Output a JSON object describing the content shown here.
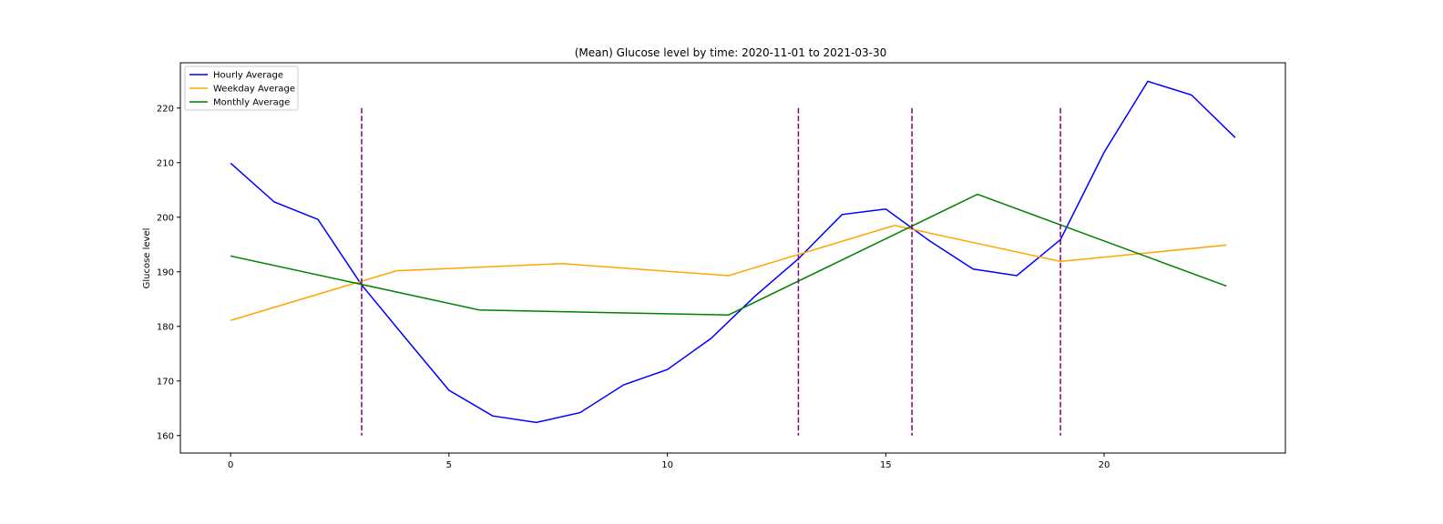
{
  "chart_data": {
    "type": "line",
    "title": "(Mean) Glucose level by time: 2020-11-01 to 2021-03-30",
    "xlabel": "",
    "ylabel": "Glucose level",
    "xlim": [
      -1.15,
      24.15
    ],
    "ylim": [
      156.8,
      228.3
    ],
    "xticks": [
      0,
      5,
      10,
      15,
      20
    ],
    "yticks": [
      160,
      170,
      180,
      190,
      200,
      210,
      220
    ],
    "grid": false,
    "legend_placement": "top-left",
    "series": [
      {
        "name": "Hourly Average",
        "color": "#0000ff",
        "x": [
          0,
          1,
          2,
          3,
          4,
          5,
          6,
          7,
          8,
          9,
          10,
          11,
          12,
          13,
          14,
          15,
          16,
          17,
          18,
          19,
          20,
          21,
          22,
          23
        ],
        "y": [
          209.9,
          202.8,
          199.6,
          187.6,
          177.9,
          168.3,
          163.6,
          162.4,
          164.2,
          169.3,
          172.1,
          177.8,
          185.5,
          192.4,
          200.5,
          201.5,
          195.7,
          190.5,
          189.3,
          195.9,
          211.9,
          224.9,
          222.4,
          214.6
        ]
      },
      {
        "name": "Weekday Average",
        "color": "#ffa500",
        "x": [
          0,
          3.8,
          7.6,
          11.4,
          15.2,
          19,
          22.8
        ],
        "y": [
          181.1,
          190.2,
          191.5,
          189.3,
          198.5,
          191.9,
          194.9
        ]
      },
      {
        "name": "Monthly Average",
        "color": "#008000",
        "x": [
          0,
          5.7,
          11.4,
          17.1,
          22.8
        ],
        "y": [
          192.9,
          183.0,
          182.1,
          204.2,
          187.4
        ]
      }
    ],
    "vlines": {
      "color": "#800080",
      "style": "dashed",
      "x": [
        3,
        13,
        15.6,
        19
      ],
      "ymin": 160,
      "ymax": 220
    }
  }
}
